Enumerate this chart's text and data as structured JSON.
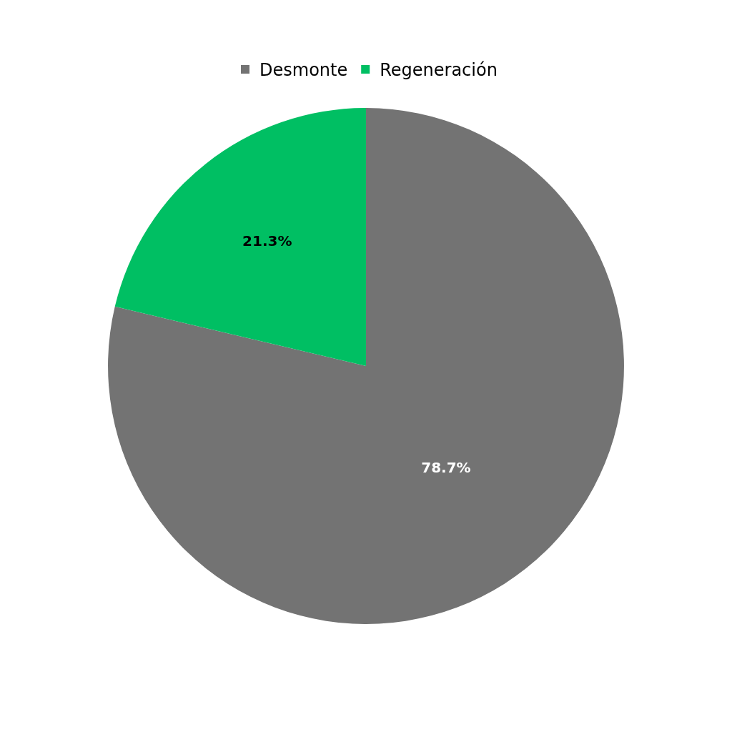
{
  "chart_data": {
    "type": "pie",
    "categories": [
      "Desmonte",
      "Regeneración"
    ],
    "values": [
      78.7,
      21.3
    ],
    "colors": [
      "#737373",
      "#00bf63"
    ],
    "value_labels": [
      "78.7%",
      "21.3%"
    ],
    "legend": "top"
  }
}
